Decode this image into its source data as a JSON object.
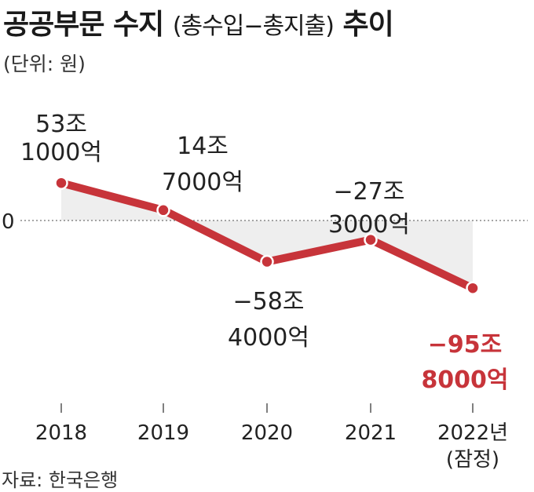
{
  "title": {
    "main": "공공부문 수지",
    "paren": "(총수입−총지출)",
    "trend": "추이"
  },
  "unit_note": "(단위: 원)",
  "source": "자료: 한국은행",
  "chart_data": {
    "type": "line",
    "title": "공공부문 수지(총수입−총지출) 추이",
    "unit": "원",
    "categories": [
      "2018",
      "2019",
      "2020",
      "2021",
      "2022년"
    ],
    "category_sub": [
      "",
      "",
      "",
      "",
      "(잠정)"
    ],
    "values_trillion_won": [
      53.1,
      14.7,
      -58.4,
      -27.3,
      -95.8
    ],
    "zero_label": "0",
    "data_labels": [
      [
        "53조",
        "1000억"
      ],
      [
        "14조",
        "7000억"
      ],
      [
        "−58조",
        "4000억"
      ],
      [
        "−27조",
        "3000억"
      ],
      [
        "−95조",
        "8000억"
      ]
    ],
    "highlight_index": 4,
    "colors": {
      "line": "#c7343a",
      "highlight_label": "#c7343a",
      "fill": "#eeeeee",
      "zero_line": "#888888"
    }
  }
}
